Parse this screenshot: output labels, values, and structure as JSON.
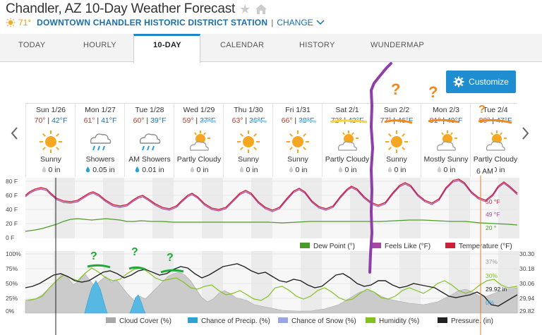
{
  "header": {
    "title": "Chandler, AZ 10-Day Weather Forecast",
    "current_temp": "71°",
    "station": "DOWNTOWN CHANDLER HISTORIC DISTRICT STATION",
    "separator": "|",
    "change_label": "CHANGE"
  },
  "tabs": [
    {
      "label": "TODAY"
    },
    {
      "label": "HOURLY"
    },
    {
      "label": "10-DAY"
    },
    {
      "label": "CALENDAR"
    },
    {
      "label": "HISTORY"
    },
    {
      "label": "WUNDERMAP"
    }
  ],
  "customize_label": "Customize",
  "days": [
    {
      "date": "Sun 1/26",
      "hi": "70°",
      "lo": "42°F",
      "icon": "sunny-icon",
      "cond": "Sunny",
      "precip": "0 in",
      "drop": "grey"
    },
    {
      "date": "Mon 1/27",
      "hi": "61°",
      "lo": "41°F",
      "icon": "rain-icon",
      "cond": "Showers",
      "precip": "0.05 in",
      "drop": "blue"
    },
    {
      "date": "Tue 1/28",
      "hi": "60°",
      "lo": "39°F",
      "icon": "rain-icon",
      "cond": "AM Showers",
      "precip": "0.01 in",
      "drop": "blue"
    },
    {
      "date": "Wed 1/29",
      "hi": "59°",
      "lo": "37°F",
      "icon": "partly-cloudy-icon",
      "cond": "Partly Cloudy",
      "precip": "0 in",
      "drop": "grey"
    },
    {
      "date": "Thu 1/30",
      "hi": "63°",
      "lo": "36°F",
      "icon": "sunny-icon",
      "cond": "Sunny",
      "precip": "0 in",
      "drop": "grey"
    },
    {
      "date": "Fri 1/31",
      "hi": "66°",
      "lo": "38°F",
      "icon": "sunny-icon",
      "cond": "Sunny",
      "precip": "0 in",
      "drop": "grey"
    },
    {
      "date": "Sat 2/1",
      "hi": "72°",
      "lo": "43°F",
      "icon": "partly-cloudy-icon",
      "cond": "Partly Cloudy",
      "precip": "0 in",
      "drop": "grey"
    },
    {
      "date": "Sun 2/2",
      "hi": "77°",
      "lo": "46°F",
      "icon": "sunny-icon",
      "cond": "Sunny",
      "precip": "0 in",
      "drop": "grey"
    },
    {
      "date": "Mon 2/3",
      "hi": "81°",
      "lo": "49°F",
      "icon": "partly-cloudy-icon",
      "cond": "Mostly Sunny",
      "precip": "0 in",
      "drop": "grey"
    },
    {
      "date": "Tue 2/4",
      "hi": "80°",
      "lo": "47°F",
      "icon": "partly-cloudy-icon",
      "cond": "Partly Cloudy",
      "precip": "0 in",
      "drop": "grey"
    }
  ],
  "time_marker": "6 AM",
  "temp_chart": {
    "y_ticks": [
      "80 F",
      "60 F",
      "40 F",
      "20 F",
      "0 F"
    ],
    "legend": [
      {
        "label": "Dew Point (°)",
        "color": "#4c9a2a"
      },
      {
        "label": "Feels Like (°F)",
        "color": "#a349a4"
      },
      {
        "label": "Temperature (°F)",
        "color": "#cc1f38"
      }
    ],
    "readouts": {
      "temp": "50 °F",
      "feels": "49 °F",
      "dew": "20 °"
    },
    "colors": {
      "temp": "#cc1f38",
      "feels": "#a349a4",
      "dew": "#4c9a2a"
    }
  },
  "lower_chart": {
    "y_left": [
      "100%",
      "75%",
      "50%",
      "25%",
      "0%"
    ],
    "y_right": [
      "30.30",
      "30.18",
      "30.06",
      "29.94",
      "29.82"
    ],
    "legend": [
      {
        "label": "Cloud Cover (%)",
        "color": "#a8a8a8"
      },
      {
        "label": "Chance of Precip. (%)",
        "color": "#2ba3d8"
      },
      {
        "label": "Chance of Snow (%)",
        "color": "#9aa6e0"
      },
      {
        "label": "Humidity (%)",
        "color": "#82c21e"
      },
      {
        "label": "Pressure. (in)",
        "color": "#222222"
      }
    ],
    "readouts": {
      "cloud": "37%",
      "humidity": "30%",
      "pressure": "29.92 in",
      "precip": "0%"
    }
  },
  "markers": {
    "question": "?"
  },
  "colors": {
    "accent": "#1e88c9",
    "button": "#1e8ed0",
    "link": "#1a6fa8",
    "hi": "#c0392b",
    "sun": "#f5a623"
  }
}
